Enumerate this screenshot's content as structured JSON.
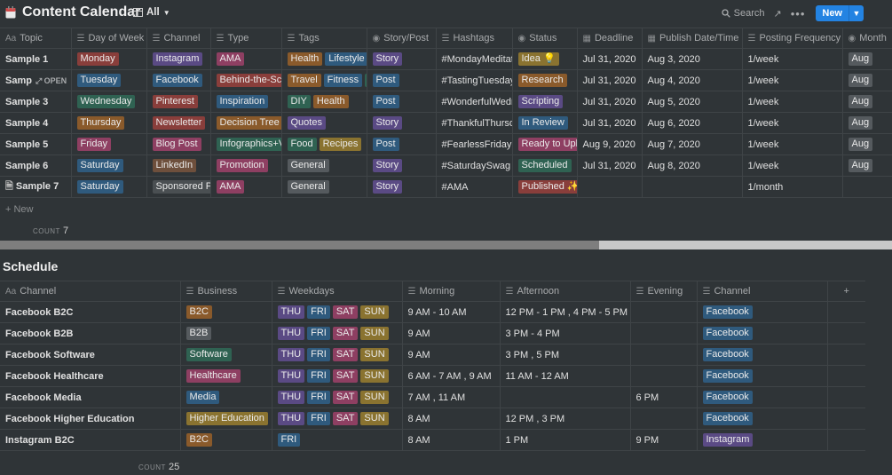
{
  "header": {
    "title": "Content Calendar",
    "view": "All",
    "search_label": "Search",
    "more": "•••",
    "new_label": "New"
  },
  "calendar": {
    "columns": [
      "Topic",
      "Day of Week",
      "Channel",
      "Type",
      "Tags",
      "Story/Post",
      "Hashtags",
      "Status",
      "Deadline",
      "Publish Date/Time",
      "Posting Frequency",
      "Month"
    ],
    "open_label": "OPEN",
    "rows": [
      {
        "topic": "Sample 1",
        "day": "Monday",
        "channel": "Instagram",
        "type": "AMA",
        "tags": [
          "Health",
          "Lifestyle"
        ],
        "story": "Story",
        "hashtags": "#MondayMeditat",
        "status": "Idea 💡",
        "deadline": "Jul 31, 2020",
        "publish": "Aug 3, 2020",
        "freq": "1/week",
        "month": "Aug"
      },
      {
        "topic": "Samp",
        "day": "Tuesday",
        "channel": "Facebook",
        "type": "Behind-the-Sce",
        "tags": [
          "Travel",
          "Fitness",
          "I"
        ],
        "story": "Post",
        "hashtags": "#TastingTuesday (",
        "status": "Research",
        "deadline": "Jul 31, 2020",
        "publish": "Aug 4, 2020",
        "freq": "1/week",
        "month": "Aug"
      },
      {
        "topic": "Sample 3",
        "day": "Wednesday",
        "channel": "Pinterest",
        "type": "Inspiration",
        "tags": [
          "DIY",
          "Health"
        ],
        "story": "Post",
        "hashtags": "#WonderfulWedn",
        "status": "Scripting",
        "deadline": "Jul 31, 2020",
        "publish": "Aug 5, 2020",
        "freq": "1/week",
        "month": "Aug"
      },
      {
        "topic": "Sample 4",
        "day": "Thursday",
        "channel": "Newsletter",
        "type": "Decision Tree",
        "tags": [
          "Quotes"
        ],
        "story": "Story",
        "hashtags": "#ThankfulThursda",
        "status": "In Review",
        "deadline": "Jul 31, 2020",
        "publish": "Aug 6, 2020",
        "freq": "1/week",
        "month": "Aug"
      },
      {
        "topic": "Sample 5",
        "day": "Friday",
        "channel": "Blog Post",
        "type": "Infographics+V",
        "tags": [
          "Food",
          "Recipes"
        ],
        "story": "Post",
        "hashtags": "#FearlessFriday #",
        "status": "Ready to Uplo",
        "deadline": "Aug 9, 2020",
        "publish": "Aug 7, 2020",
        "freq": "1/week",
        "month": "Aug"
      },
      {
        "topic": "Sample 6",
        "day": "Saturday",
        "channel": "LinkedIn",
        "type": "Promotion",
        "tags": [
          "General"
        ],
        "story": "Story",
        "hashtags": "#SaturdaySwag #",
        "status": "Scheduled",
        "deadline": "Jul 31, 2020",
        "publish": "Aug 8, 2020",
        "freq": "1/week",
        "month": "Aug"
      },
      {
        "topic": "Sample 7",
        "day": "Saturday",
        "channel": "Sponsored Po",
        "type": "AMA",
        "tags": [
          "General"
        ],
        "story": "Story",
        "hashtags": "#AMA",
        "status": "Published ✨",
        "deadline": "",
        "publish": "",
        "freq": "1/month",
        "month": ""
      }
    ],
    "new_row": "+  New",
    "count_label": "COUNT",
    "count_value": "7"
  },
  "schedule": {
    "title": "Schedule",
    "columns": [
      "Channel",
      "Business",
      "Weekdays",
      "Morning",
      "Afternoon",
      "Evening",
      "Channel"
    ],
    "add_col": "+",
    "rows": [
      {
        "name": "Facebook B2C",
        "business": "B2C",
        "days": [
          "THU",
          "FRI",
          "SAT",
          "SUN"
        ],
        "morning": "9 AM - 10 AM",
        "afternoon": "12 PM - 1 PM , 4 PM - 5 PM",
        "evening": "",
        "channel": "Facebook"
      },
      {
        "name": "Facebook B2B",
        "business": "B2B",
        "days": [
          "THU",
          "FRI",
          "SAT",
          "SUN"
        ],
        "morning": "9 AM",
        "afternoon": "3 PM - 4 PM",
        "evening": "",
        "channel": "Facebook"
      },
      {
        "name": "Facebook Software",
        "business": "Software",
        "days": [
          "THU",
          "FRI",
          "SAT",
          "SUN"
        ],
        "morning": "9 AM",
        "afternoon": "3 PM , 5 PM",
        "evening": "",
        "channel": "Facebook"
      },
      {
        "name": "Facebook Healthcare",
        "business": "Healthcare",
        "days": [
          "THU",
          "FRI",
          "SAT",
          "SUN"
        ],
        "morning": "6 AM - 7 AM , 9 AM",
        "afternoon": "11 AM - 12 AM",
        "evening": "",
        "channel": "Facebook"
      },
      {
        "name": "Facebook Media",
        "business": "Media",
        "days": [
          "THU",
          "FRI",
          "SAT",
          "SUN"
        ],
        "morning": "7 AM , 11 AM",
        "afternoon": "",
        "evening": "6 PM",
        "channel": "Facebook"
      },
      {
        "name": "Facebook Higher Education",
        "business": "Higher Education",
        "days": [
          "THU",
          "FRI",
          "SAT",
          "SUN"
        ],
        "morning": "8 AM",
        "afternoon": "12 PM , 3 PM",
        "evening": "",
        "channel": "Facebook"
      },
      {
        "name": "Instagram B2C",
        "business": "B2C",
        "days": [
          "FRI"
        ],
        "morning": "8 AM",
        "afternoon": "1 PM",
        "evening": "9 PM",
        "channel": "Instagram"
      }
    ],
    "count_label": "COUNT",
    "count_value": "25"
  },
  "colors": {
    "day": {
      "Monday": "c-red",
      "Tuesday": "c-blue",
      "Wednesday": "c-green",
      "Thursday": "c-orange",
      "Friday": "c-pink",
      "Saturday": "c-blue"
    },
    "channel": {
      "Instagram": "c-purple",
      "Facebook": "c-blue",
      "Pinterest": "c-red",
      "Newsletter": "c-red",
      "Blog Post": "c-pink",
      "LinkedIn": "c-brown",
      "Sponsored Po": "c-lightgray"
    },
    "type": {
      "AMA": "c-pink",
      "Behind-the-Sce": "c-red",
      "Inspiration": "c-blue",
      "Decision Tree": "c-orange",
      "Infographics+V": "c-green",
      "Promotion": "c-pink"
    },
    "tag": {
      "Health": "c-orange",
      "Lifestyle": "c-blue",
      "Travel": "c-orange",
      "Fitness": "c-blue",
      "I": "c-green",
      "DIY": "c-green",
      "Quotes": "c-purple",
      "Food": "c-green",
      "Recipes": "c-yellow",
      "General": "c-gray"
    },
    "story": {
      "Story": "c-purple",
      "Post": "c-blue"
    },
    "status": {
      "Idea 💡": "c-yellow",
      "Research": "c-orange",
      "Scripting": "c-purple",
      "In Review": "c-blue",
      "Ready to Uplo": "c-pink",
      "Scheduled": "c-green",
      "Published ✨": "c-red"
    },
    "business": {
      "B2C": "c-orange",
      "B2B": "c-gray",
      "Software": "c-green",
      "Healthcare": "c-pink",
      "Media": "c-blue",
      "Higher Education": "c-yellow"
    },
    "weekday": {
      "THU": "c-purple",
      "FRI": "c-blue",
      "SAT": "c-pink",
      "SUN": "c-yellow"
    },
    "schedchannel": {
      "Facebook": "c-blue",
      "Instagram": "c-purple"
    }
  }
}
